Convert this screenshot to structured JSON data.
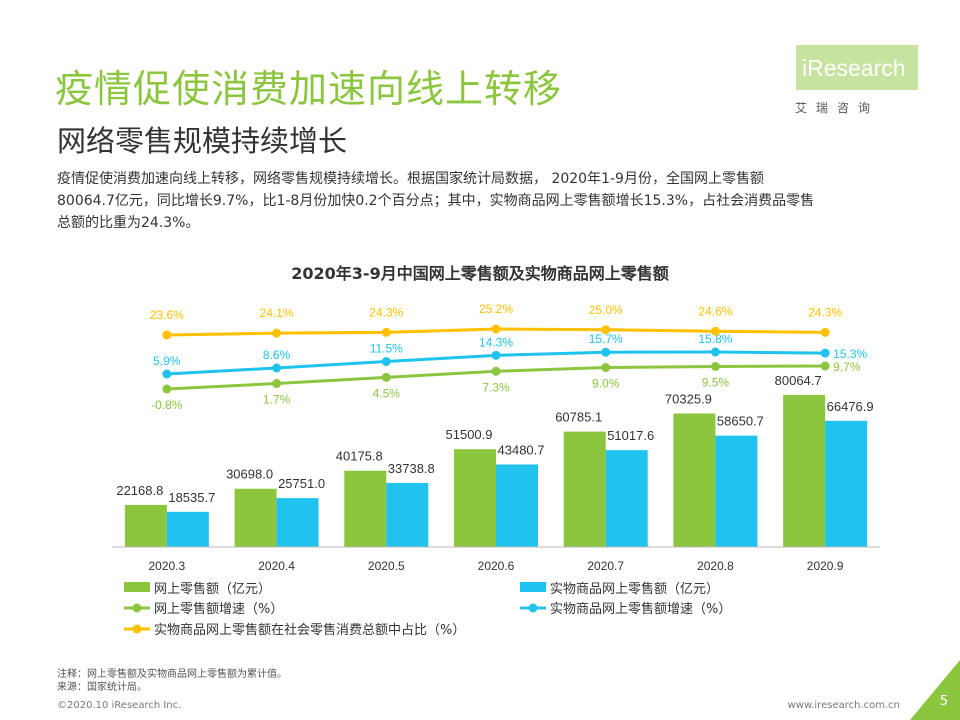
{
  "header": {
    "title": "疫情促使消费加速向线上转移",
    "subtitle": "网络零售规模持续增长"
  },
  "logo": {
    "brand": "iResearch",
    "cn": "艾瑞咨询"
  },
  "intro": {
    "line1": "疫情促使消费加速向线上转移，网络零售规模持续增长。根据国家统计局数据， 2020年1-9月份，全国网上零售额",
    "line2": "80064.7亿元，同比增长9.7%，比1-8月份加快0.2个百分点；其中，实物商品网上零售额增长15.3%，占社会消费品零售",
    "line3": "总额的比重为24.3%。"
  },
  "colors": {
    "green": "#8cc63f",
    "blue": "#1fc3ee",
    "yellow": "#ffc000",
    "lightgreen": "#c6e4a0"
  },
  "chart_data": {
    "type": "bar",
    "title": "2020年3-9月中国网上零售额及实物商品网上零售额",
    "categories": [
      "2020.3",
      "2020.4",
      "2020.5",
      "2020.6",
      "2020.7",
      "2020.8",
      "2020.9"
    ],
    "series": [
      {
        "name": "网上零售额（亿元）",
        "type": "bar",
        "color": "#8cc63f",
        "values": [
          22168.8,
          30698.0,
          40175.8,
          51500.9,
          60785.1,
          70325.9,
          80064.7
        ],
        "labels": [
          "22168.8",
          "30698.0",
          "40175.8",
          "51500.9",
          "60785.1",
          "70325.9",
          "80064.7"
        ]
      },
      {
        "name": "实物商品网上零售额（亿元）",
        "type": "bar",
        "color": "#1fc3ee",
        "values": [
          18535.7,
          25751.0,
          33738.8,
          43480.7,
          51017.6,
          58650.7,
          66476.9
        ],
        "labels": [
          "18535.7",
          "25751.0",
          "33738.8",
          "43480.7",
          "51017.6",
          "58650.7",
          "66476.9"
        ]
      },
      {
        "name": "网上零售额增速（%）",
        "type": "line",
        "color": "#8cc63f",
        "values": [
          -0.8,
          1.7,
          4.5,
          7.3,
          9.0,
          9.5,
          9.7
        ],
        "labels": [
          "-0.8%",
          "1.7%",
          "4.5%",
          "7.3%",
          "9.0%",
          "9.5%",
          "9.7%"
        ]
      },
      {
        "name": "实物商品网上零售额增速（%）",
        "type": "line",
        "color": "#1fc3ee",
        "values": [
          5.9,
          8.6,
          11.5,
          14.3,
          15.7,
          15.8,
          15.3
        ],
        "labels": [
          "5.9%",
          "8.6%",
          "11.5%",
          "14.3%",
          "15.7%",
          "15.8%",
          "15.3%"
        ]
      },
      {
        "name": "实物商品网上零售额在社会零售消费总额中占比（%）",
        "type": "line",
        "color": "#ffc000",
        "values": [
          23.6,
          24.1,
          24.3,
          25.2,
          25.0,
          24.6,
          24.3
        ],
        "labels": [
          "23.6%",
          "24.1%",
          "24.3%",
          "25.2%",
          "25.0%",
          "24.6%",
          "24.3%"
        ]
      }
    ],
    "legend_position": "bottom",
    "grid": false
  },
  "notes": {
    "note": "注释：网上零售额及实物商品网上零售额为累计值。",
    "source": "来源：国家统计局。"
  },
  "footer": {
    "copyright": "©2020.10 iResearch Inc.",
    "website": "www.iresearch.com.cn",
    "page": "5"
  }
}
